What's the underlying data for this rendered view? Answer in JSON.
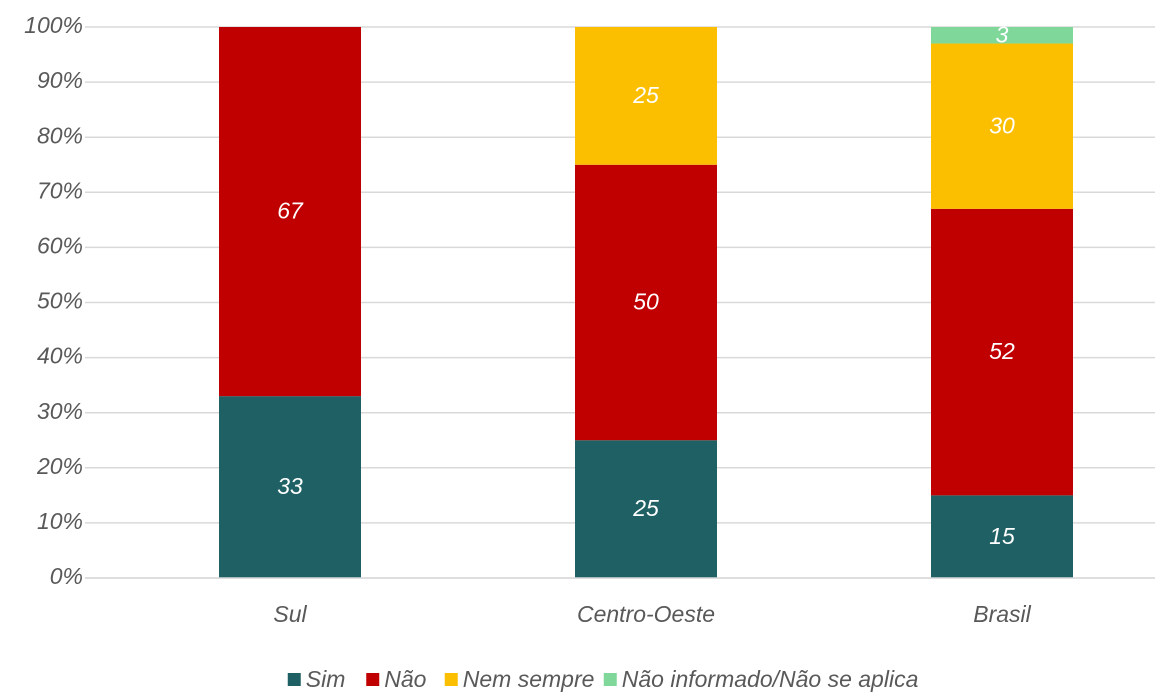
{
  "chart_data": {
    "type": "stacked_bar",
    "categories": [
      "Sul",
      "Centro-Oeste",
      "Brasil"
    ],
    "series": [
      {
        "name": "Sim",
        "color": "#1f6064",
        "values": [
          33,
          25,
          15
        ]
      },
      {
        "name": "Não",
        "color": "#c00000",
        "values": [
          67,
          50,
          52
        ]
      },
      {
        "name": "Nem sempre",
        "color": "#fbbf00",
        "values": [
          null,
          25,
          30
        ]
      },
      {
        "name": "Não informado/Não se aplica",
        "color": "#7fd89a",
        "values": [
          null,
          null,
          3
        ]
      }
    ],
    "ylim": [
      0,
      100
    ],
    "yticks": [
      {
        "value": 0,
        "label": "0%"
      },
      {
        "value": 10,
        "label": "10%"
      },
      {
        "value": 20,
        "label": "20%"
      },
      {
        "value": 30,
        "label": "30%"
      },
      {
        "value": 40,
        "label": "40%"
      },
      {
        "value": 50,
        "label": "50%"
      },
      {
        "value": 60,
        "label": "60%"
      },
      {
        "value": 70,
        "label": "70%"
      },
      {
        "value": 80,
        "label": "80%"
      },
      {
        "value": 90,
        "label": "90%"
      },
      {
        "value": 100,
        "label": "100%"
      }
    ],
    "grid": true,
    "legend": "bottom"
  }
}
